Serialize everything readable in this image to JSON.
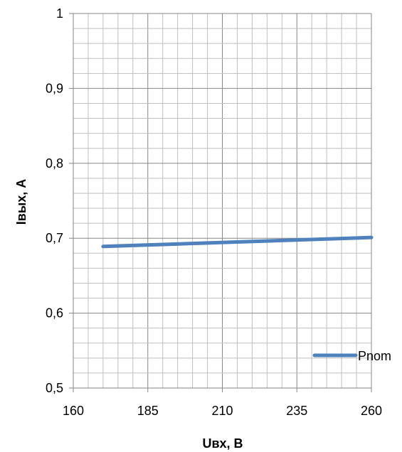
{
  "chart_data": {
    "type": "line",
    "xlabel": "Uвх, В",
    "ylabel": "Iвых, А",
    "xlim": [
      160,
      260
    ],
    "ylim": [
      0.5,
      1
    ],
    "x_ticks": [
      "160",
      "185",
      "210",
      "235",
      "260"
    ],
    "y_ticks": [
      "0,5",
      "0,6",
      "0,7",
      "0,8",
      "0,9",
      "1"
    ],
    "grid": "major and minor",
    "legend_position": "bottom-right",
    "series": [
      {
        "name": "Pnom",
        "color": "#4F81BD",
        "x": [
          170,
          260
        ],
        "y": [
          0.689,
          0.701
        ]
      }
    ]
  }
}
